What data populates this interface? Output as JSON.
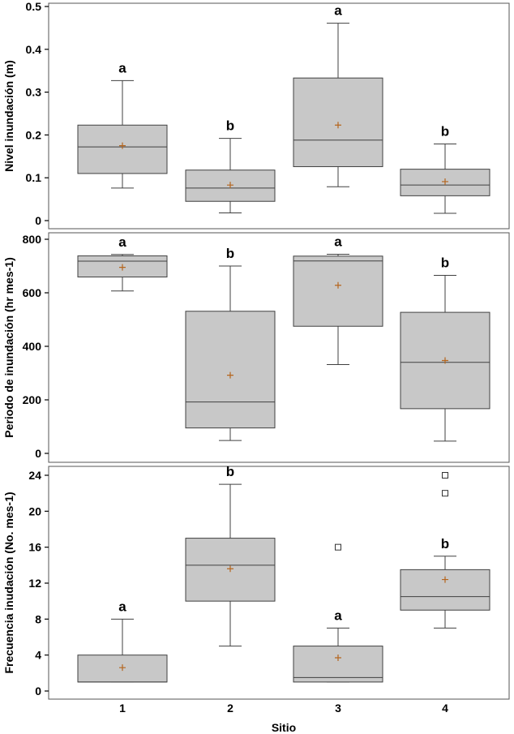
{
  "chart_data": [
    {
      "type": "box",
      "title": "",
      "xlabel": "",
      "ylabel": "Nivel inundación (m)",
      "ylim": [
        0,
        0.5
      ],
      "yticks": [
        0,
        0.1,
        0.2,
        0.3,
        0.4,
        0.5
      ],
      "ytick_labels": [
        "0",
        "0.1",
        "0.2",
        "0.3",
        "0.4",
        "0.5"
      ],
      "grid": false,
      "categories": [
        "1",
        "2",
        "3",
        "4"
      ],
      "boxes": [
        {
          "category": "1",
          "whisker_low": 0.076,
          "q1": 0.11,
          "median": 0.172,
          "q3": 0.223,
          "whisker_high": 0.327,
          "mean": 0.175,
          "outliers": [],
          "group": "a"
        },
        {
          "category": "2",
          "whisker_low": 0.018,
          "q1": 0.045,
          "median": 0.076,
          "q3": 0.118,
          "whisker_high": 0.192,
          "mean": 0.083,
          "outliers": [],
          "group": "b"
        },
        {
          "category": "3",
          "whisker_low": 0.079,
          "q1": 0.126,
          "median": 0.188,
          "q3": 0.333,
          "whisker_high": 0.461,
          "mean": 0.223,
          "outliers": [],
          "group": "a"
        },
        {
          "category": "4",
          "whisker_low": 0.017,
          "q1": 0.058,
          "median": 0.083,
          "q3": 0.12,
          "whisker_high": 0.179,
          "mean": 0.091,
          "outliers": [],
          "group": "b"
        }
      ]
    },
    {
      "type": "box",
      "title": "",
      "xlabel": "",
      "ylabel": "Periodo de inundación (hr mes-1)",
      "ylim": [
        0,
        800
      ],
      "yticks": [
        0,
        200,
        400,
        600,
        800
      ],
      "ytick_labels": [
        "0",
        "200",
        "400",
        "600",
        "800"
      ],
      "grid": false,
      "categories": [
        "1",
        "2",
        "3",
        "4"
      ],
      "boxes": [
        {
          "category": "1",
          "whisker_low": 607,
          "q1": 659,
          "median": 718,
          "q3": 738,
          "whisker_high": 743,
          "mean": 695,
          "outliers": [],
          "group": "a"
        },
        {
          "category": "2",
          "whisker_low": 48,
          "q1": 95,
          "median": 192,
          "q3": 531,
          "whisker_high": 700,
          "mean": 292,
          "outliers": [],
          "group": "b"
        },
        {
          "category": "3",
          "whisker_low": 332,
          "q1": 475,
          "median": 719,
          "q3": 737,
          "whisker_high": 744,
          "mean": 628,
          "outliers": [],
          "group": "a"
        },
        {
          "category": "4",
          "whisker_low": 46,
          "q1": 167,
          "median": 340,
          "q3": 527,
          "whisker_high": 665,
          "mean": 347,
          "outliers": [],
          "group": "b"
        }
      ]
    },
    {
      "type": "box",
      "title": "",
      "xlabel": "Sitio",
      "ylabel": "Frecuencia inudación (No. mes-1)",
      "ylim": [
        0,
        24
      ],
      "yticks": [
        0,
        4,
        8,
        12,
        16,
        20,
        24
      ],
      "ytick_labels": [
        "0",
        "4",
        "8",
        "12",
        "16",
        "20",
        "24"
      ],
      "xtick_labels": [
        "1",
        "2",
        "3",
        "4"
      ],
      "grid": false,
      "categories": [
        "1",
        "2",
        "3",
        "4"
      ],
      "boxes": [
        {
          "category": "1",
          "whisker_low": 1,
          "q1": 1,
          "median": 1,
          "q3": 4,
          "whisker_high": 8,
          "mean": 2.6,
          "outliers": [],
          "group": "a"
        },
        {
          "category": "2",
          "whisker_low": 5,
          "q1": 10,
          "median": 14,
          "q3": 17,
          "whisker_high": 23,
          "mean": 13.6,
          "outliers": [],
          "group": "b"
        },
        {
          "category": "3",
          "whisker_low": 1,
          "q1": 1,
          "median": 1.5,
          "q3": 5,
          "whisker_high": 7,
          "mean": 3.7,
          "outliers": [
            16
          ],
          "group": "a"
        },
        {
          "category": "4",
          "whisker_low": 7,
          "q1": 9,
          "median": 10.5,
          "q3": 13.5,
          "whisker_high": 15,
          "mean": 12.4,
          "outliers": [
            22,
            24
          ],
          "group": "b"
        }
      ]
    }
  ],
  "colors": {
    "box_fill": "#c8c8c8",
    "line": "#404040",
    "mean_marker": "#b5651d",
    "frame": "#555555",
    "background": "#ffffff"
  }
}
